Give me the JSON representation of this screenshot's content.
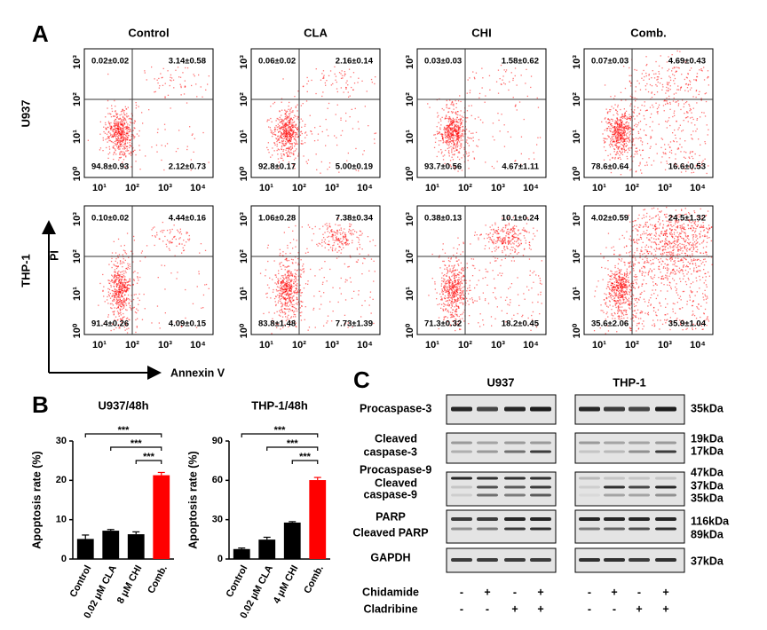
{
  "panel_a": {
    "label": "A",
    "columns": [
      "Control",
      "CLA",
      "CHI",
      "Comb."
    ],
    "rows": [
      "U937",
      "THP-1"
    ],
    "y_axis_label": "PI",
    "x_axis_label": "Annexin V",
    "x_ticks": [
      "10¹",
      "10²",
      "10³",
      "10⁴"
    ],
    "y_ticks": [
      "10⁰",
      "10¹",
      "10²",
      "10³"
    ],
    "quadrants": [
      [
        [
          "0.02±0.02",
          "3.14±0.58",
          "94.8±0.93",
          "2.12±0.73"
        ],
        [
          "0.06±0.02",
          "2.16±0.14",
          "92.8±0.17",
          "5.00±0.19"
        ],
        [
          "0.03±0.03",
          "1.58±0.62",
          "93.7±0.56",
          "4.67±1.11"
        ],
        [
          "0.07±0.03",
          "4.69±0.43",
          "78.6±0.64",
          "16.6±0.53"
        ]
      ],
      [
        [
          "0.10±0.02",
          "4.44±0.16",
          "91.4±0.26",
          "4.09±0.15"
        ],
        [
          "1.06±0.28",
          "7.38±0.34",
          "83.8±1.48",
          "7.73±1.39"
        ],
        [
          "0.38±0.13",
          "10.1±0.24",
          "71.3±0.32",
          "18.2±0.45"
        ],
        [
          "4.02±0.59",
          "24.5±1.32",
          "35.6±2.06",
          "35.9±1.04"
        ]
      ]
    ]
  },
  "panel_b": {
    "label": "B"
  },
  "chart_data": [
    {
      "type": "bar",
      "title": "U937/48h",
      "y_label": "Apoptosis  rate (%)",
      "categories": [
        "Control",
        "0.02 μM CLA",
        "8 μM CHI",
        "Comb."
      ],
      "values": [
        5.1,
        7.2,
        6.3,
        21.3
      ],
      "errors": [
        1.0,
        0.3,
        0.6,
        0.7
      ],
      "colors": [
        "#000000",
        "#000000",
        "#000000",
        "#ff0000"
      ],
      "ylim": [
        0,
        30
      ],
      "yticks": [
        0,
        10,
        20,
        30
      ],
      "annotations": [
        "***",
        "***",
        "***"
      ]
    },
    {
      "type": "bar",
      "title": "THP-1/48h",
      "y_label": "Apoptosis  rate (%)",
      "categories": [
        "Control",
        "0.02 μM CLA",
        "4 μM CHI",
        "Comb."
      ],
      "values": [
        7.6,
        14.8,
        27.8,
        60.2
      ],
      "errors": [
        0.8,
        1.8,
        0.7,
        2.0
      ],
      "colors": [
        "#000000",
        "#000000",
        "#000000",
        "#ff0000"
      ],
      "ylim": [
        0,
        90
      ],
      "yticks": [
        0,
        30,
        60,
        90
      ],
      "annotations": [
        "***",
        "***",
        "***"
      ]
    }
  ],
  "panel_c": {
    "label": "C",
    "cell_lines": [
      "U937",
      "THP-1"
    ],
    "rows": [
      {
        "labels": [
          "Procaspase-3"
        ],
        "sizes": [
          "35kDa"
        ]
      },
      {
        "labels": [
          "Cleaved",
          "caspase-3"
        ],
        "sizes": [
          "19kDa",
          "17kDa"
        ]
      },
      {
        "labels": [
          "Procaspase-9",
          "Cleaved",
          "caspase-9"
        ],
        "sizes": [
          "47kDa",
          "37kDa",
          "35kDa"
        ]
      },
      {
        "labels": [
          "PARP",
          "Cleaved PARP"
        ],
        "sizes": [
          "116kDa",
          "89kDa"
        ]
      },
      {
        "labels": [
          "GAPDH"
        ],
        "sizes": [
          "37kDa"
        ]
      }
    ],
    "treatments": [
      {
        "name": "Chidamide",
        "signs": [
          "-",
          "+",
          "-",
          "+",
          "-",
          "+",
          "-",
          "+"
        ]
      },
      {
        "name": "Cladribine",
        "signs": [
          "-",
          "-",
          "+",
          "+",
          "-",
          "-",
          "+",
          "+"
        ]
      }
    ]
  }
}
